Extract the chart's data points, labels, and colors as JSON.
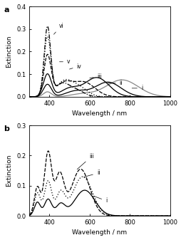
{
  "panel_a": {
    "label": "a",
    "ylabel": "Extinction",
    "xlabel": "Wavelength / nm",
    "ylim": [
      0,
      0.4
    ],
    "xlim": [
      300,
      1000
    ],
    "yticks": [
      0.0,
      0.1,
      0.2,
      0.3,
      0.4
    ],
    "xticks": [
      400,
      600,
      800,
      1000
    ]
  },
  "panel_b": {
    "label": "b",
    "ylabel": "Extinction",
    "xlabel": "Wavelength / nm",
    "ylim": [
      0,
      0.3
    ],
    "xlim": [
      300,
      1000
    ],
    "yticks": [
      0.0,
      0.1,
      0.2,
      0.3
    ],
    "xticks": [
      400,
      600,
      800,
      1000
    ]
  }
}
